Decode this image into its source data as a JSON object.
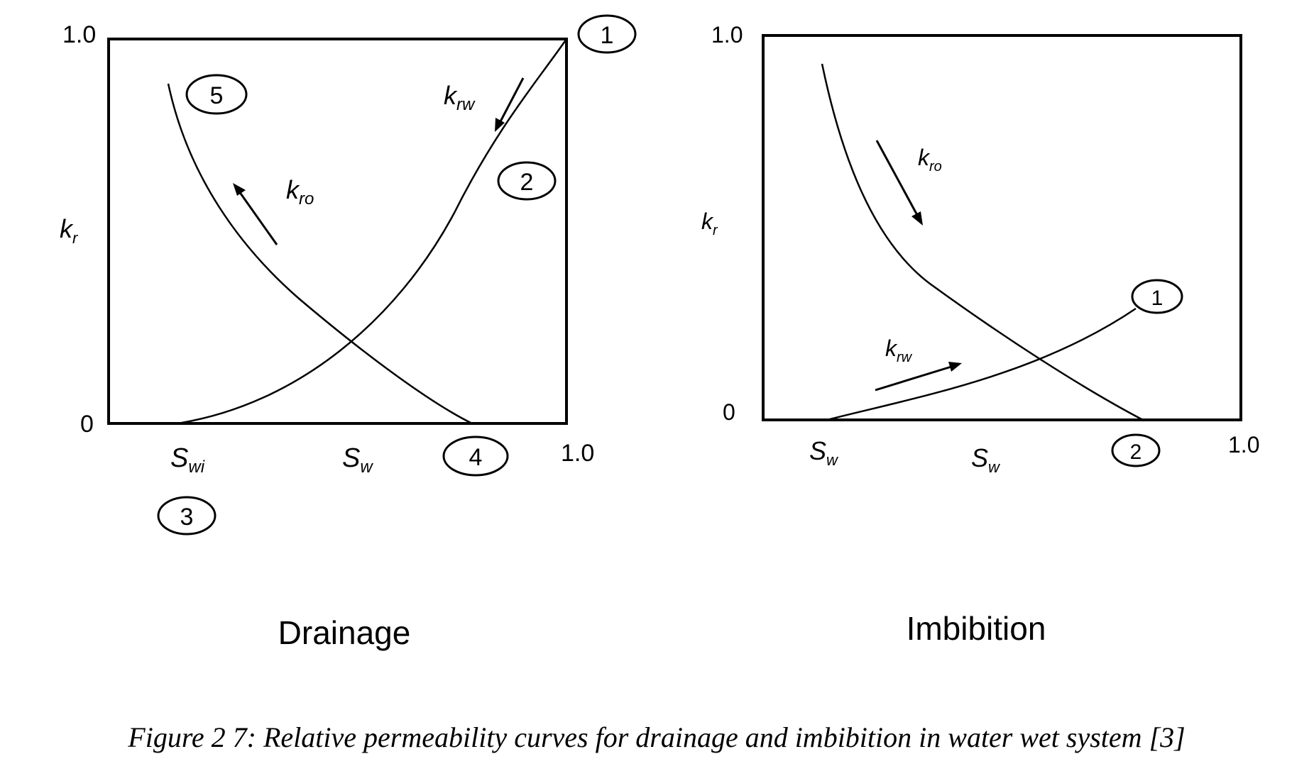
{
  "panels": [
    {
      "id": "drainage",
      "title": "Drainage",
      "y_top_label": "1.0",
      "y_zero_label": "0",
      "x_end_label": "1.0",
      "y_axis_label": "k",
      "y_axis_label_sub": "r",
      "x_start_label": "S",
      "x_start_label_sub": "wi",
      "x_axis_label": "S",
      "x_axis_label_sub": "w",
      "curve_labels": [
        {
          "main": "k",
          "sub": "rw"
        },
        {
          "main": "k",
          "sub": "ro"
        }
      ],
      "markers": [
        "1",
        "2",
        "3",
        "4",
        "5"
      ]
    },
    {
      "id": "imbibition",
      "title": "Imbibition",
      "y_top_label": "1.0",
      "y_zero_label": "0",
      "x_end_label": "1.0",
      "y_axis_label": "k",
      "y_axis_label_sub": "r",
      "x_start_label": "S",
      "x_start_label_sub": "w",
      "x_axis_label": "S",
      "x_axis_label_sub": "w",
      "curve_labels": [
        {
          "main": "k",
          "sub": "ro"
        },
        {
          "main": "k",
          "sub": "rw"
        }
      ],
      "markers": [
        "1",
        "2"
      ]
    }
  ],
  "caption": "Figure 2 7: Relative permeability curves for drainage and imbibition in water wet system [3]",
  "colors": {
    "ink": "#000000",
    "background": "#ffffff"
  }
}
